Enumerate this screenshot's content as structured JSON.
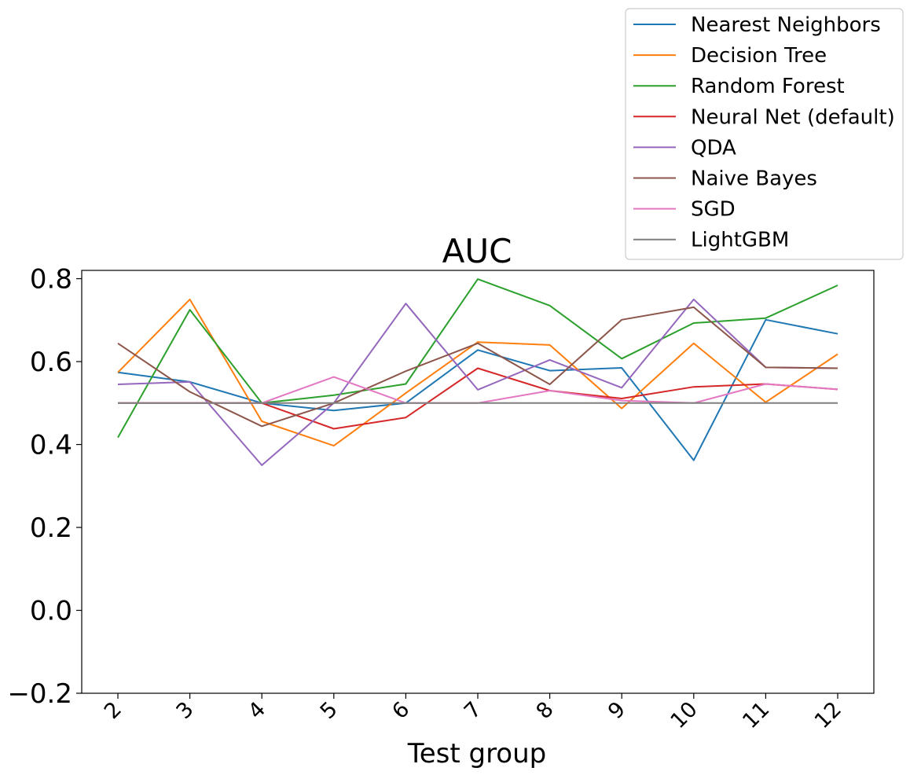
{
  "chart_data": {
    "type": "line",
    "title": "AUC",
    "xlabel": "Test group",
    "ylabel": "",
    "x": [
      "2",
      "3",
      "4",
      "5",
      "6",
      "7",
      "8",
      "9",
      "10",
      "11",
      "12"
    ],
    "ylim": [
      -0.2,
      0.82
    ],
    "yticks": [
      "−0.2",
      "0.0",
      "0.2",
      "0.4",
      "0.6",
      "0.8"
    ],
    "ytick_values": [
      -0.2,
      0.0,
      0.2,
      0.4,
      0.6,
      0.8
    ],
    "grid": false,
    "legend_position": "top-right",
    "series": [
      {
        "name": "Nearest Neighbors",
        "color": "#1f77b4",
        "values": [
          0.574,
          0.551,
          0.5,
          0.482,
          0.5,
          0.628,
          0.578,
          0.585,
          0.362,
          0.701,
          0.667
        ]
      },
      {
        "name": "Decision Tree",
        "color": "#ff7f0e",
        "values": [
          0.574,
          0.75,
          0.456,
          0.397,
          0.524,
          0.647,
          0.64,
          0.487,
          0.644,
          0.502,
          0.618
        ]
      },
      {
        "name": "Random Forest",
        "color": "#2ca02c",
        "values": [
          0.417,
          0.725,
          0.5,
          0.519,
          0.546,
          0.799,
          0.735,
          0.607,
          0.693,
          0.705,
          0.784
        ]
      },
      {
        "name": "Neural Net (default)",
        "color": "#d62728",
        "values": [
          0.5,
          0.5,
          0.5,
          0.438,
          0.465,
          0.584,
          0.53,
          0.511,
          0.539,
          0.546,
          0.533
        ]
      },
      {
        "name": "QDA",
        "color": "#9467bd",
        "values": [
          0.545,
          0.551,
          0.35,
          0.5,
          0.74,
          0.532,
          0.604,
          0.537,
          0.75,
          0.586,
          0.584
        ]
      },
      {
        "name": "Naive Bayes",
        "color": "#8c564b",
        "values": [
          0.644,
          0.527,
          0.444,
          0.5,
          0.577,
          0.644,
          0.545,
          0.701,
          0.731,
          0.586,
          0.584
        ]
      },
      {
        "name": "SGD",
        "color": "#e377c2",
        "values": [
          0.5,
          0.5,
          0.5,
          0.563,
          0.5,
          0.5,
          0.53,
          0.506,
          0.5,
          0.546,
          0.533
        ]
      },
      {
        "name": "LightGBM",
        "color": "#7f7f7f",
        "values": [
          0.5,
          0.5,
          0.5,
          0.5,
          0.5,
          0.5,
          0.5,
          0.5,
          0.5,
          0.5,
          0.5
        ]
      }
    ]
  }
}
